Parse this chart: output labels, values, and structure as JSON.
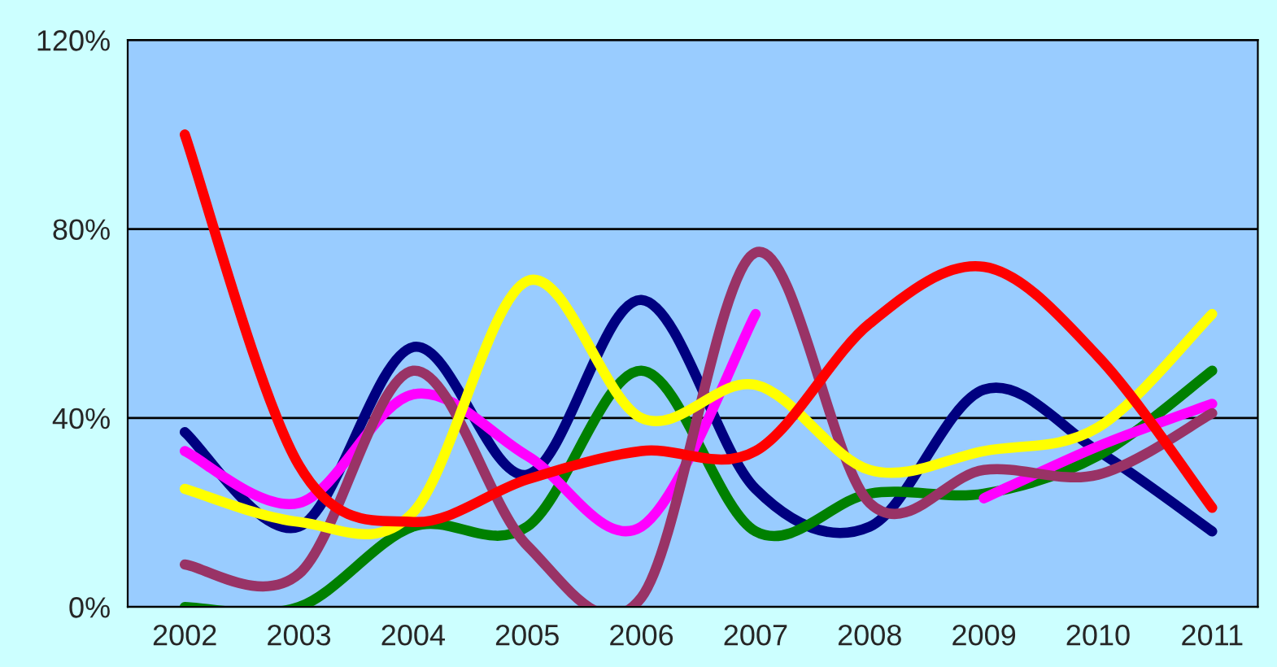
{
  "chart_data": {
    "type": "line",
    "categories": [
      "2002",
      "2003",
      "2004",
      "2005",
      "2006",
      "2007",
      "2008",
      "2009",
      "2010",
      "2011"
    ],
    "ylim": [
      0,
      120
    ],
    "yticks": [
      {
        "value": 0,
        "label": "0%"
      },
      {
        "value": 40,
        "label": "40%"
      },
      {
        "value": 80,
        "label": "80%"
      },
      {
        "value": 120,
        "label": "120%"
      }
    ],
    "grid": "y",
    "marker": "none",
    "line_style": "solid",
    "series": [
      {
        "color": "#000080",
        "values": [
          37,
          17,
          55,
          28,
          65,
          25,
          17,
          46,
          33,
          16
        ]
      },
      {
        "color": "#008000",
        "values": [
          0,
          0,
          17,
          17,
          50,
          16,
          24,
          24,
          32,
          50
        ]
      },
      {
        "color": "#ff00ff",
        "values": [
          33,
          22,
          45,
          32,
          17,
          62,
          null,
          23,
          34,
          43
        ]
      },
      {
        "color": "#993366",
        "values": [
          9,
          7,
          50,
          13,
          2,
          75,
          22,
          29,
          28,
          41
        ]
      },
      {
        "color": "#ffff00",
        "values": [
          25,
          18,
          20,
          69,
          40,
          47,
          29,
          33,
          38,
          62
        ]
      },
      {
        "color": "#ff0000",
        "values": [
          100,
          30,
          18,
          27,
          33,
          33,
          60,
          72,
          53,
          21
        ]
      }
    ]
  }
}
